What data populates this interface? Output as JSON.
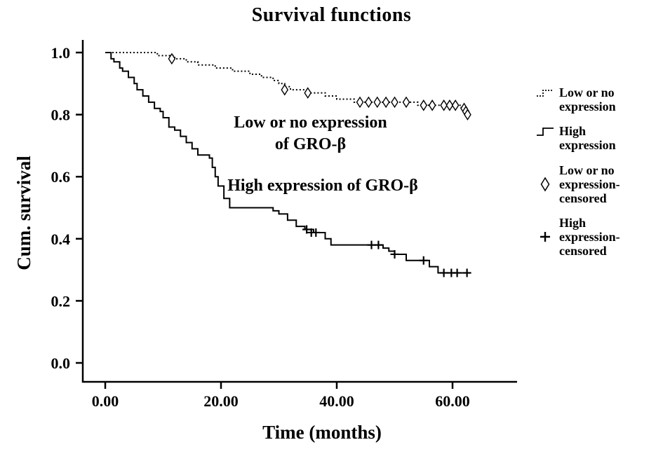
{
  "title": "Survival functions",
  "axes": {
    "x_label": "Time  (months)",
    "y_label": "Cum. survival",
    "x_ticks": [
      "0.00",
      "20.00",
      "40.00",
      "60.00"
    ],
    "x_tick_values": [
      0,
      20,
      40,
      60
    ],
    "y_ticks": [
      "0.0",
      "0.2",
      "0.4",
      "0.6",
      "0.8",
      "1.0"
    ],
    "y_tick_values": [
      0.0,
      0.2,
      0.4,
      0.6,
      0.8,
      1.0
    ]
  },
  "annotations": {
    "low": {
      "line1": "Low or no expression",
      "line2": "of GRO-β"
    },
    "high": {
      "text": "High expression of GRO-β"
    }
  },
  "legend": {
    "items": [
      {
        "icon": "dotted-step-line-icon",
        "lines": [
          "Low or no",
          "expression"
        ],
        "icon_align": "start"
      },
      {
        "icon": "solid-step-line-icon",
        "lines": [
          "High",
          "expression"
        ],
        "icon_align": "start"
      },
      {
        "icon": "diamond-icon",
        "lines": [
          "Low or no",
          "expression-",
          "censored"
        ],
        "icon_align": "center"
      },
      {
        "icon": "plus-icon",
        "lines": [
          "High",
          "expression-",
          "censored"
        ],
        "icon_align": "center"
      }
    ]
  },
  "chart_data": {
    "type": "line",
    "subtype": "kaplan-meier-step",
    "title": "Survival functions",
    "xlabel": "Time (months)",
    "ylabel": "Cum. survival",
    "xlim": [
      -4,
      71
    ],
    "ylim": [
      -0.07,
      1.07
    ],
    "x_ticks": [
      0,
      20,
      40,
      60
    ],
    "y_ticks": [
      0,
      0.2,
      0.4,
      0.6,
      0.8,
      1.0
    ],
    "grid": false,
    "legend_position": "right",
    "annotations": [
      "Low or no expression of GRO-β",
      "High expression of GRO-β"
    ],
    "series": [
      {
        "name": "Low or no expression",
        "style": "dotted",
        "censored_marker": "diamond",
        "points": [
          [
            0,
            1.0
          ],
          [
            9,
            0.99
          ],
          [
            12,
            0.98
          ],
          [
            14,
            0.97
          ],
          [
            16,
            0.96
          ],
          [
            19,
            0.95
          ],
          [
            22,
            0.94
          ],
          [
            25,
            0.93
          ],
          [
            27,
            0.92
          ],
          [
            29,
            0.91
          ],
          [
            30,
            0.9
          ],
          [
            31,
            0.89
          ],
          [
            32,
            0.88
          ],
          [
            35,
            0.87
          ],
          [
            38,
            0.86
          ],
          [
            40,
            0.85
          ],
          [
            43,
            0.84
          ],
          [
            54,
            0.83
          ],
          [
            61.5,
            0.82
          ],
          [
            62,
            0.81
          ],
          [
            62.3,
            0.8
          ],
          [
            63,
            0.8
          ]
        ],
        "censored": [
          [
            11.5,
            0.98
          ],
          [
            31,
            0.88
          ],
          [
            35,
            0.87
          ],
          [
            44,
            0.84
          ],
          [
            45.5,
            0.84
          ],
          [
            47,
            0.84
          ],
          [
            48.5,
            0.84
          ],
          [
            50,
            0.84
          ],
          [
            52,
            0.84
          ],
          [
            55,
            0.83
          ],
          [
            56.5,
            0.83
          ],
          [
            58.5,
            0.83
          ],
          [
            59.5,
            0.83
          ],
          [
            60.5,
            0.83
          ],
          [
            62,
            0.82
          ],
          [
            62.3,
            0.81
          ],
          [
            62.6,
            0.8
          ]
        ]
      },
      {
        "name": "High expression",
        "style": "solid",
        "censored_marker": "plus",
        "points": [
          [
            0,
            1.0
          ],
          [
            1,
            0.98
          ],
          [
            1.5,
            0.97
          ],
          [
            2.5,
            0.95
          ],
          [
            3,
            0.94
          ],
          [
            4,
            0.92
          ],
          [
            5,
            0.9
          ],
          [
            5.5,
            0.88
          ],
          [
            6.5,
            0.86
          ],
          [
            7.5,
            0.84
          ],
          [
            8.5,
            0.82
          ],
          [
            9.5,
            0.81
          ],
          [
            10,
            0.79
          ],
          [
            11,
            0.76
          ],
          [
            12,
            0.75
          ],
          [
            13,
            0.73
          ],
          [
            14,
            0.71
          ],
          [
            15,
            0.69
          ],
          [
            16,
            0.67
          ],
          [
            18,
            0.66
          ],
          [
            18.5,
            0.63
          ],
          [
            19,
            0.6
          ],
          [
            19.5,
            0.57
          ],
          [
            20.5,
            0.53
          ],
          [
            21.5,
            0.5
          ],
          [
            29,
            0.49
          ],
          [
            30,
            0.48
          ],
          [
            31.5,
            0.46
          ],
          [
            33,
            0.44
          ],
          [
            34.5,
            0.43
          ],
          [
            36,
            0.42
          ],
          [
            38,
            0.4
          ],
          [
            39,
            0.38
          ],
          [
            48,
            0.37
          ],
          [
            49,
            0.36
          ],
          [
            50,
            0.35
          ],
          [
            52,
            0.33
          ],
          [
            56,
            0.31
          ],
          [
            57.5,
            0.29
          ],
          [
            63,
            0.29
          ]
        ],
        "censored": [
          [
            34.8,
            0.43
          ],
          [
            35.6,
            0.42
          ],
          [
            36.4,
            0.42
          ],
          [
            46,
            0.38
          ],
          [
            47.2,
            0.38
          ],
          [
            50,
            0.35
          ],
          [
            55,
            0.33
          ],
          [
            58.5,
            0.29
          ],
          [
            59.8,
            0.29
          ],
          [
            60.8,
            0.29
          ],
          [
            62.5,
            0.29
          ]
        ]
      }
    ]
  }
}
